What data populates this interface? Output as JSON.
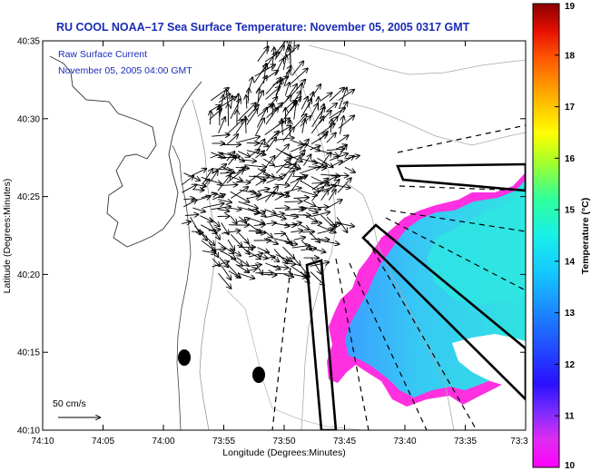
{
  "title": "RU COOL  NOAA–17  Sea Surface Temperature:  November 05, 2005 0317 GMT",
  "overlay": {
    "line1": "Raw Surface Current",
    "line2": "November 05, 2005 04:00 GMT"
  },
  "scale_label": "50 cm/s",
  "axes": {
    "xlabel": "Longitude (Degrees:Minutes)",
    "ylabel": "Latitude (Degrees:Minutes)",
    "x_ticks": [
      "74:10",
      "74:05",
      "74:00",
      "73:55",
      "73:50",
      "73:45",
      "73:40",
      "73:35",
      "73:3"
    ],
    "y_ticks": [
      "40:35",
      "40:30",
      "40:25",
      "40:20",
      "40:15",
      "40:10"
    ]
  },
  "colorbar": {
    "label": "Temperature (°C)",
    "ticks": [
      "19",
      "18",
      "17",
      "16",
      "15",
      "14",
      "13",
      "12",
      "11",
      "10"
    ],
    "range": [
      10,
      19
    ]
  },
  "colors": {
    "title": "#1a2bb5",
    "sst_cold": "#ff30e0",
    "sst_mid": "#2a7cff",
    "sst_warm": "#2ee0e0"
  }
}
